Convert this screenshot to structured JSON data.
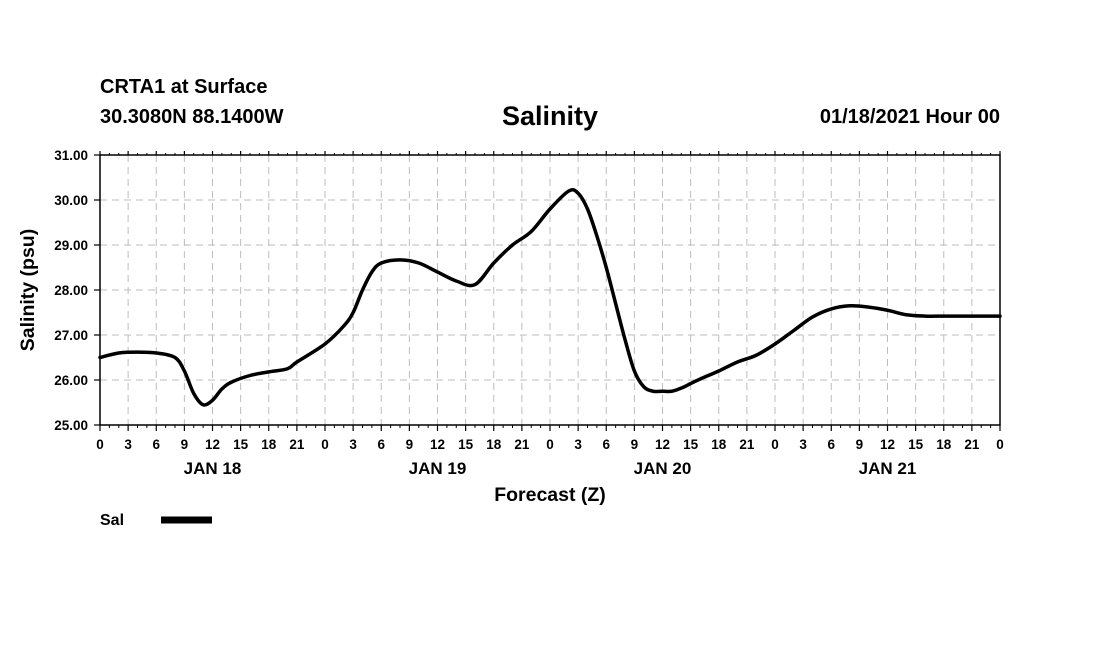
{
  "header": {
    "station": "CRTA1 at Surface",
    "coords": "30.3080N 88.1400W",
    "title": "Salinity",
    "datetime": "01/18/2021 Hour 00"
  },
  "chart_data": {
    "type": "line",
    "title": "Salinity",
    "xlabel": "Forecast (Z)",
    "ylabel": "Salinity (psu)",
    "xlim": [
      0,
      96
    ],
    "ylim": [
      25,
      31
    ],
    "grid": true,
    "y_ticks": [
      25,
      26,
      27,
      28,
      29,
      30,
      31
    ],
    "y_tick_labels": [
      "25.00",
      "26.00",
      "27.00",
      "28.00",
      "29.00",
      "30.00",
      "31.00"
    ],
    "x_tick_hours": [
      0,
      3,
      6,
      9,
      12,
      15,
      18,
      21,
      24,
      27,
      30,
      33,
      36,
      39,
      42,
      45,
      48,
      51,
      54,
      57,
      60,
      63,
      66,
      69,
      72,
      75,
      78,
      81,
      84,
      87,
      90,
      93,
      96
    ],
    "x_tick_labels": [
      "0",
      "3",
      "6",
      "9",
      "12",
      "15",
      "18",
      "21",
      "0",
      "3",
      "6",
      "9",
      "12",
      "15",
      "18",
      "21",
      "0",
      "3",
      "6",
      "9",
      "12",
      "15",
      "18",
      "21",
      "0",
      "3",
      "6",
      "9",
      "12",
      "15",
      "18",
      "21",
      "0"
    ],
    "day_labels": [
      {
        "label": "JAN 18",
        "hour": 12
      },
      {
        "label": "JAN 19",
        "hour": 36
      },
      {
        "label": "JAN 20",
        "hour": 60
      },
      {
        "label": "JAN 21",
        "hour": 84
      }
    ],
    "legend": [
      {
        "name": "Sal",
        "color": "#000000"
      }
    ],
    "series": [
      {
        "name": "Sal",
        "color": "#000000",
        "x": [
          0,
          2,
          4,
          6,
          8,
          9,
          10,
          11,
          12,
          13,
          14,
          16,
          18,
          20,
          21,
          24,
          26,
          27,
          28,
          29,
          30,
          32,
          34,
          36,
          38,
          40,
          42,
          44,
          46,
          48,
          50,
          51,
          52,
          53,
          54,
          55,
          56,
          57,
          58,
          59,
          60,
          61,
          62,
          63,
          64,
          66,
          68,
          70,
          72,
          74,
          76,
          78,
          80,
          82,
          84,
          86,
          88,
          90,
          92,
          94,
          96
        ],
        "y": [
          26.5,
          26.6,
          26.62,
          26.6,
          26.5,
          26.2,
          25.7,
          25.45,
          25.55,
          25.8,
          25.95,
          26.1,
          26.18,
          26.25,
          26.4,
          26.8,
          27.2,
          27.5,
          28.0,
          28.4,
          28.6,
          28.67,
          28.6,
          28.4,
          28.2,
          28.12,
          28.6,
          29.0,
          29.3,
          29.8,
          30.2,
          30.15,
          29.8,
          29.2,
          28.5,
          27.7,
          26.9,
          26.2,
          25.85,
          25.75,
          25.75,
          25.75,
          25.82,
          25.92,
          26.02,
          26.2,
          26.4,
          26.55,
          26.8,
          27.1,
          27.4,
          27.58,
          27.65,
          27.62,
          27.55,
          27.45,
          27.42,
          27.42,
          27.42,
          27.42,
          27.42
        ]
      }
    ]
  }
}
